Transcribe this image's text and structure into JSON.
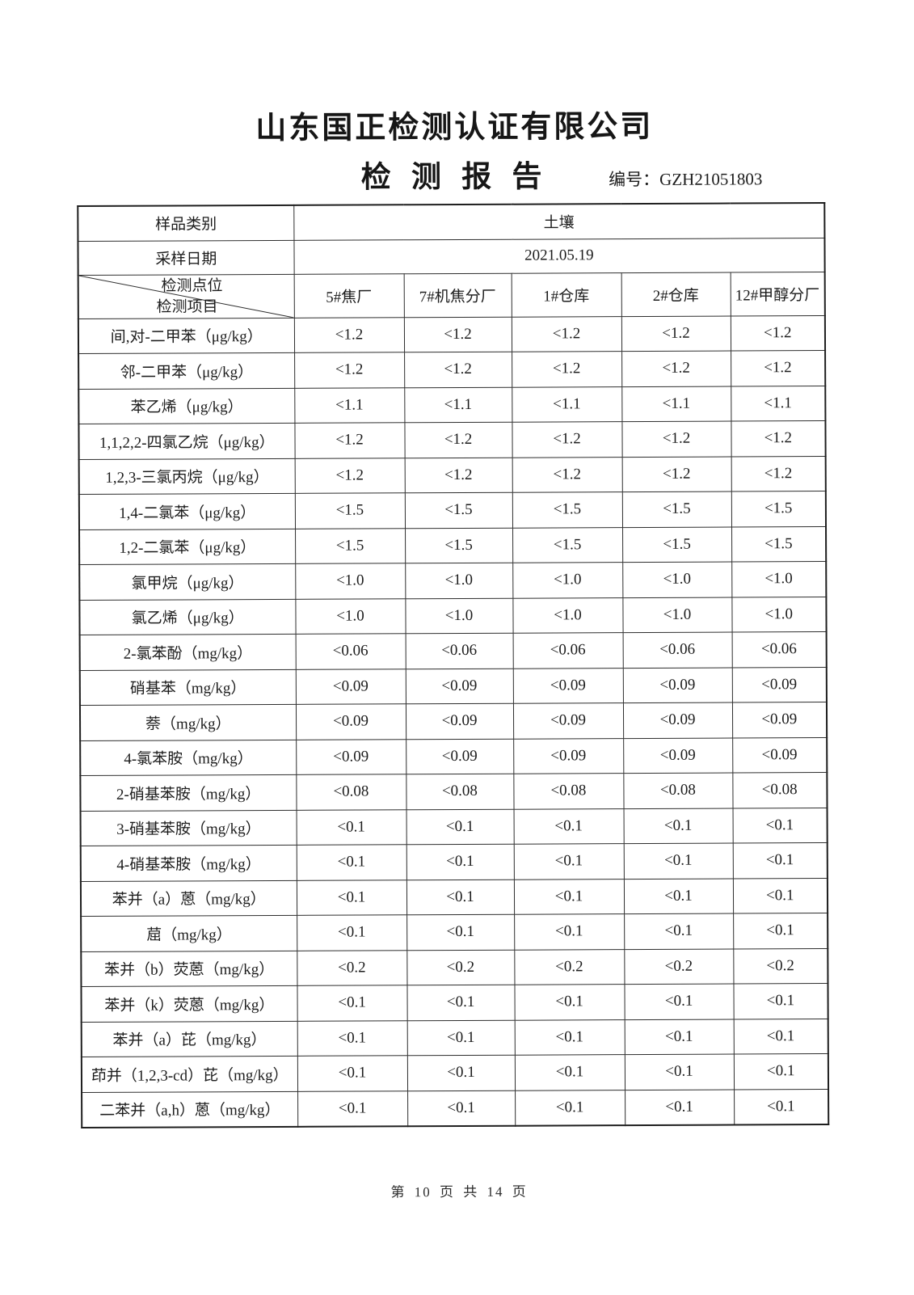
{
  "header": {
    "company": "山东国正检测认证有限公司",
    "title": "检 测 报 告",
    "report_no_label": "编号：",
    "report_no": "GZH21051803"
  },
  "table": {
    "sample_type": {
      "label": "样品类别",
      "value": "土壤"
    },
    "sample_date": {
      "label": "采样日期",
      "value": "2021.05.19"
    },
    "corner": {
      "top_label": "检测点位",
      "bottom_label": "检测项目"
    },
    "site_columns": [
      "5#焦厂",
      "7#机焦分厂",
      "1#仓库",
      "2#仓库",
      "12#甲醇分厂"
    ],
    "rows": [
      {
        "item": "间,对-二甲苯（μg/kg）",
        "values": [
          "<1.2",
          "<1.2",
          "<1.2",
          "<1.2",
          "<1.2"
        ]
      },
      {
        "item": "邻-二甲苯（μg/kg）",
        "values": [
          "<1.2",
          "<1.2",
          "<1.2",
          "<1.2",
          "<1.2"
        ]
      },
      {
        "item": "苯乙烯（μg/kg）",
        "values": [
          "<1.1",
          "<1.1",
          "<1.1",
          "<1.1",
          "<1.1"
        ]
      },
      {
        "item": "1,1,2,2-四氯乙烷（μg/kg）",
        "values": [
          "<1.2",
          "<1.2",
          "<1.2",
          "<1.2",
          "<1.2"
        ]
      },
      {
        "item": "1,2,3-三氯丙烷（μg/kg）",
        "values": [
          "<1.2",
          "<1.2",
          "<1.2",
          "<1.2",
          "<1.2"
        ]
      },
      {
        "item": "1,4-二氯苯（μg/kg）",
        "values": [
          "<1.5",
          "<1.5",
          "<1.5",
          "<1.5",
          "<1.5"
        ]
      },
      {
        "item": "1,2-二氯苯（μg/kg）",
        "values": [
          "<1.5",
          "<1.5",
          "<1.5",
          "<1.5",
          "<1.5"
        ]
      },
      {
        "item": "氯甲烷（μg/kg）",
        "values": [
          "<1.0",
          "<1.0",
          "<1.0",
          "<1.0",
          "<1.0"
        ]
      },
      {
        "item": "氯乙烯（μg/kg）",
        "values": [
          "<1.0",
          "<1.0",
          "<1.0",
          "<1.0",
          "<1.0"
        ]
      },
      {
        "item": "2-氯苯酚（mg/kg）",
        "values": [
          "<0.06",
          "<0.06",
          "<0.06",
          "<0.06",
          "<0.06"
        ]
      },
      {
        "item": "硝基苯（mg/kg）",
        "values": [
          "<0.09",
          "<0.09",
          "<0.09",
          "<0.09",
          "<0.09"
        ]
      },
      {
        "item": "萘（mg/kg）",
        "values": [
          "<0.09",
          "<0.09",
          "<0.09",
          "<0.09",
          "<0.09"
        ]
      },
      {
        "item": "4-氯苯胺（mg/kg）",
        "values": [
          "<0.09",
          "<0.09",
          "<0.09",
          "<0.09",
          "<0.09"
        ]
      },
      {
        "item": "2-硝基苯胺（mg/kg）",
        "values": [
          "<0.08",
          "<0.08",
          "<0.08",
          "<0.08",
          "<0.08"
        ]
      },
      {
        "item": "3-硝基苯胺（mg/kg）",
        "values": [
          "<0.1",
          "<0.1",
          "<0.1",
          "<0.1",
          "<0.1"
        ]
      },
      {
        "item": "4-硝基苯胺（mg/kg）",
        "values": [
          "<0.1",
          "<0.1",
          "<0.1",
          "<0.1",
          "<0.1"
        ]
      },
      {
        "item": "苯并（a）蒽（mg/kg）",
        "values": [
          "<0.1",
          "<0.1",
          "<0.1",
          "<0.1",
          "<0.1"
        ]
      },
      {
        "item": "䓛（mg/kg）",
        "values": [
          "<0.1",
          "<0.1",
          "<0.1",
          "<0.1",
          "<0.1"
        ]
      },
      {
        "item": "苯并（b）荧蒽（mg/kg）",
        "values": [
          "<0.2",
          "<0.2",
          "<0.2",
          "<0.2",
          "<0.2"
        ]
      },
      {
        "item": "苯并（k）荧蒽（mg/kg）",
        "values": [
          "<0.1",
          "<0.1",
          "<0.1",
          "<0.1",
          "<0.1"
        ]
      },
      {
        "item": "苯并（a）芘（mg/kg）",
        "values": [
          "<0.1",
          "<0.1",
          "<0.1",
          "<0.1",
          "<0.1"
        ]
      },
      {
        "item": "茚并（1,2,3-cd）芘（mg/kg）",
        "values": [
          "<0.1",
          "<0.1",
          "<0.1",
          "<0.1",
          "<0.1"
        ]
      },
      {
        "item": "二苯并（a,h）蒽（mg/kg）",
        "values": [
          "<0.1",
          "<0.1",
          "<0.1",
          "<0.1",
          "<0.1"
        ]
      }
    ]
  },
  "footer": {
    "text": "第 10 页 共 14 页"
  }
}
